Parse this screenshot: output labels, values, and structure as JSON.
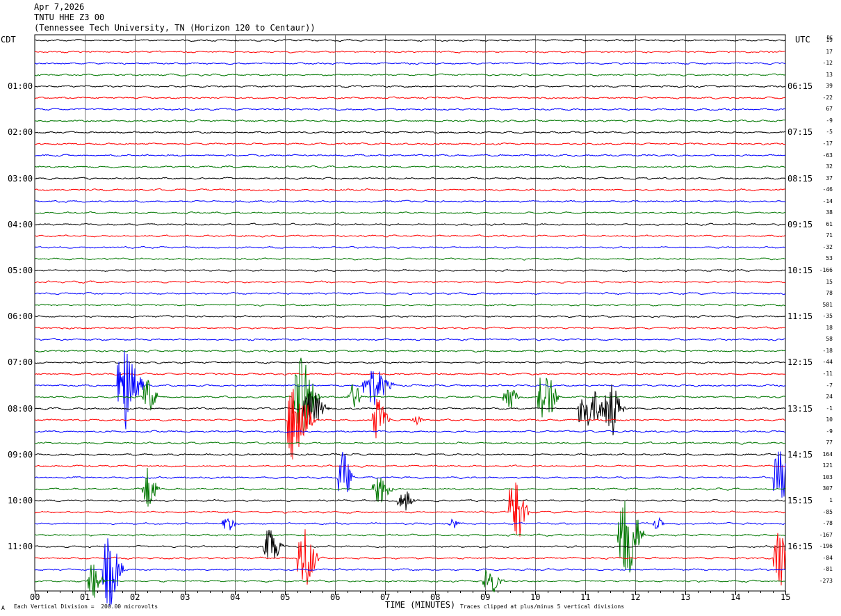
{
  "header": {
    "date": "Apr 7,2026",
    "station": "TNTU HHE Z3 00",
    "location": "(Tennessee Tech University, TN (Horizon 120 to Centaur))"
  },
  "axes": {
    "left_label": "CDT",
    "right_label": "UTC",
    "dc_label": "DC",
    "x_title": "TIME (MINUTES)"
  },
  "footer": {
    "scale_note": "Each Vertical Division =  200.00 microvolts",
    "clip_note": "Traces clipped at plus/minus 5 vertical divisions",
    "corner_mark": "A"
  },
  "colors": [
    "#000000",
    "#ff0000",
    "#0000ff",
    "#007700"
  ],
  "chart_data": {
    "type": "line",
    "title": "TNTU HHE Z3 00",
    "xlabel": "TIME (MINUTES)",
    "xlim": [
      0,
      15
    ],
    "x_ticks": [
      "00",
      "01",
      "02",
      "03",
      "04",
      "05",
      "06",
      "07",
      "08",
      "09",
      "10",
      "11",
      "12",
      "13",
      "14",
      "15"
    ],
    "trace_count": 48,
    "trace_minutes": 15,
    "left_time_labels": [
      {
        "trace": 4,
        "text": "01:00"
      },
      {
        "trace": 8,
        "text": "02:00"
      },
      {
        "trace": 12,
        "text": "03:00"
      },
      {
        "trace": 16,
        "text": "04:00"
      },
      {
        "trace": 20,
        "text": "05:00"
      },
      {
        "trace": 24,
        "text": "06:00"
      },
      {
        "trace": 28,
        "text": "07:00"
      },
      {
        "trace": 32,
        "text": "08:00"
      },
      {
        "trace": 36,
        "text": "09:00"
      },
      {
        "trace": 40,
        "text": "10:00"
      },
      {
        "trace": 44,
        "text": "11:00"
      }
    ],
    "right_time_labels": [
      {
        "trace": 4,
        "text": "06:15"
      },
      {
        "trace": 8,
        "text": "07:15"
      },
      {
        "trace": 12,
        "text": "08:15"
      },
      {
        "trace": 16,
        "text": "09:15"
      },
      {
        "trace": 20,
        "text": "10:15"
      },
      {
        "trace": 24,
        "text": "11:15"
      },
      {
        "trace": 28,
        "text": "12:15"
      },
      {
        "trace": 32,
        "text": "13:15"
      },
      {
        "trace": 36,
        "text": "14:15"
      },
      {
        "trace": 40,
        "text": "15:15"
      },
      {
        "trace": 44,
        "text": "16:15"
      }
    ],
    "dc_offsets": [
      "19",
      "17",
      "-12",
      "13",
      "39",
      "-22",
      "67",
      "-9",
      "-5",
      "-17",
      "-63",
      "32",
      "37",
      "-46",
      "-14",
      "38",
      "61",
      "71",
      "-32",
      "53",
      "-166",
      "15",
      "78",
      "581",
      "-35",
      "18",
      "58",
      "-18",
      "-44",
      "-11",
      "-7",
      "24",
      "-1",
      "10",
      "-9",
      "77",
      "164",
      "121",
      "103",
      "307",
      "1",
      "-85",
      "-78",
      "-167",
      "-196",
      "-84",
      "-81",
      "-273"
    ],
    "events": [
      {
        "trace": 30,
        "minute": 1.7,
        "amp": 5,
        "dur": 0.5
      },
      {
        "trace": 31,
        "minute": 2.2,
        "amp": 2,
        "dur": 0.3
      },
      {
        "trace": 31,
        "minute": 5.2,
        "amp": 5,
        "dur": 0.5
      },
      {
        "trace": 32,
        "minute": 5.4,
        "amp": 2,
        "dur": 0.5
      },
      {
        "trace": 33,
        "minute": 5.1,
        "amp": 5,
        "dur": 0.5
      },
      {
        "trace": 30,
        "minute": 6.6,
        "amp": 2.2,
        "dur": 0.6
      },
      {
        "trace": 31,
        "minute": 6.3,
        "amp": 1.5,
        "dur": 0.3
      },
      {
        "trace": 33,
        "minute": 6.8,
        "amp": 2.5,
        "dur": 0.3
      },
      {
        "trace": 33,
        "minute": 7.6,
        "amp": 0.7,
        "dur": 0.2
      },
      {
        "trace": 31,
        "minute": 9.4,
        "amp": 1.5,
        "dur": 0.3
      },
      {
        "trace": 31,
        "minute": 10.1,
        "amp": 3,
        "dur": 0.4
      },
      {
        "trace": 32,
        "minute": 10.9,
        "amp": 2.2,
        "dur": 0.7
      },
      {
        "trace": 32,
        "minute": 11.4,
        "amp": 3,
        "dur": 0.4
      },
      {
        "trace": 38,
        "minute": 6.1,
        "amp": 3,
        "dur": 0.3
      },
      {
        "trace": 38,
        "minute": 14.8,
        "amp": 3,
        "dur": 0.4
      },
      {
        "trace": 39,
        "minute": 2.2,
        "amp": 2.5,
        "dur": 0.3
      },
      {
        "trace": 39,
        "minute": 6.8,
        "amp": 1.5,
        "dur": 0.4
      },
      {
        "trace": 40,
        "minute": 7.3,
        "amp": 1.3,
        "dur": 0.3
      },
      {
        "trace": 41,
        "minute": 9.5,
        "amp": 4,
        "dur": 0.4
      },
      {
        "trace": 42,
        "minute": 3.8,
        "amp": 0.8,
        "dur": 0.3
      },
      {
        "trace": 42,
        "minute": 8.3,
        "amp": 0.6,
        "dur": 0.2
      },
      {
        "trace": 42,
        "minute": 12.4,
        "amp": 0.8,
        "dur": 0.2
      },
      {
        "trace": 43,
        "minute": 11.7,
        "amp": 5,
        "dur": 0.5
      },
      {
        "trace": 44,
        "minute": 4.6,
        "amp": 2,
        "dur": 0.4
      },
      {
        "trace": 45,
        "minute": 5.3,
        "amp": 3.5,
        "dur": 0.4
      },
      {
        "trace": 45,
        "minute": 14.8,
        "amp": 3.5,
        "dur": 0.3
      },
      {
        "trace": 46,
        "minute": 1.4,
        "amp": 4,
        "dur": 0.4
      },
      {
        "trace": 47,
        "minute": 1.1,
        "amp": 2,
        "dur": 0.3
      },
      {
        "trace": 47,
        "minute": 9.0,
        "amp": 1.5,
        "dur": 0.4
      }
    ]
  }
}
